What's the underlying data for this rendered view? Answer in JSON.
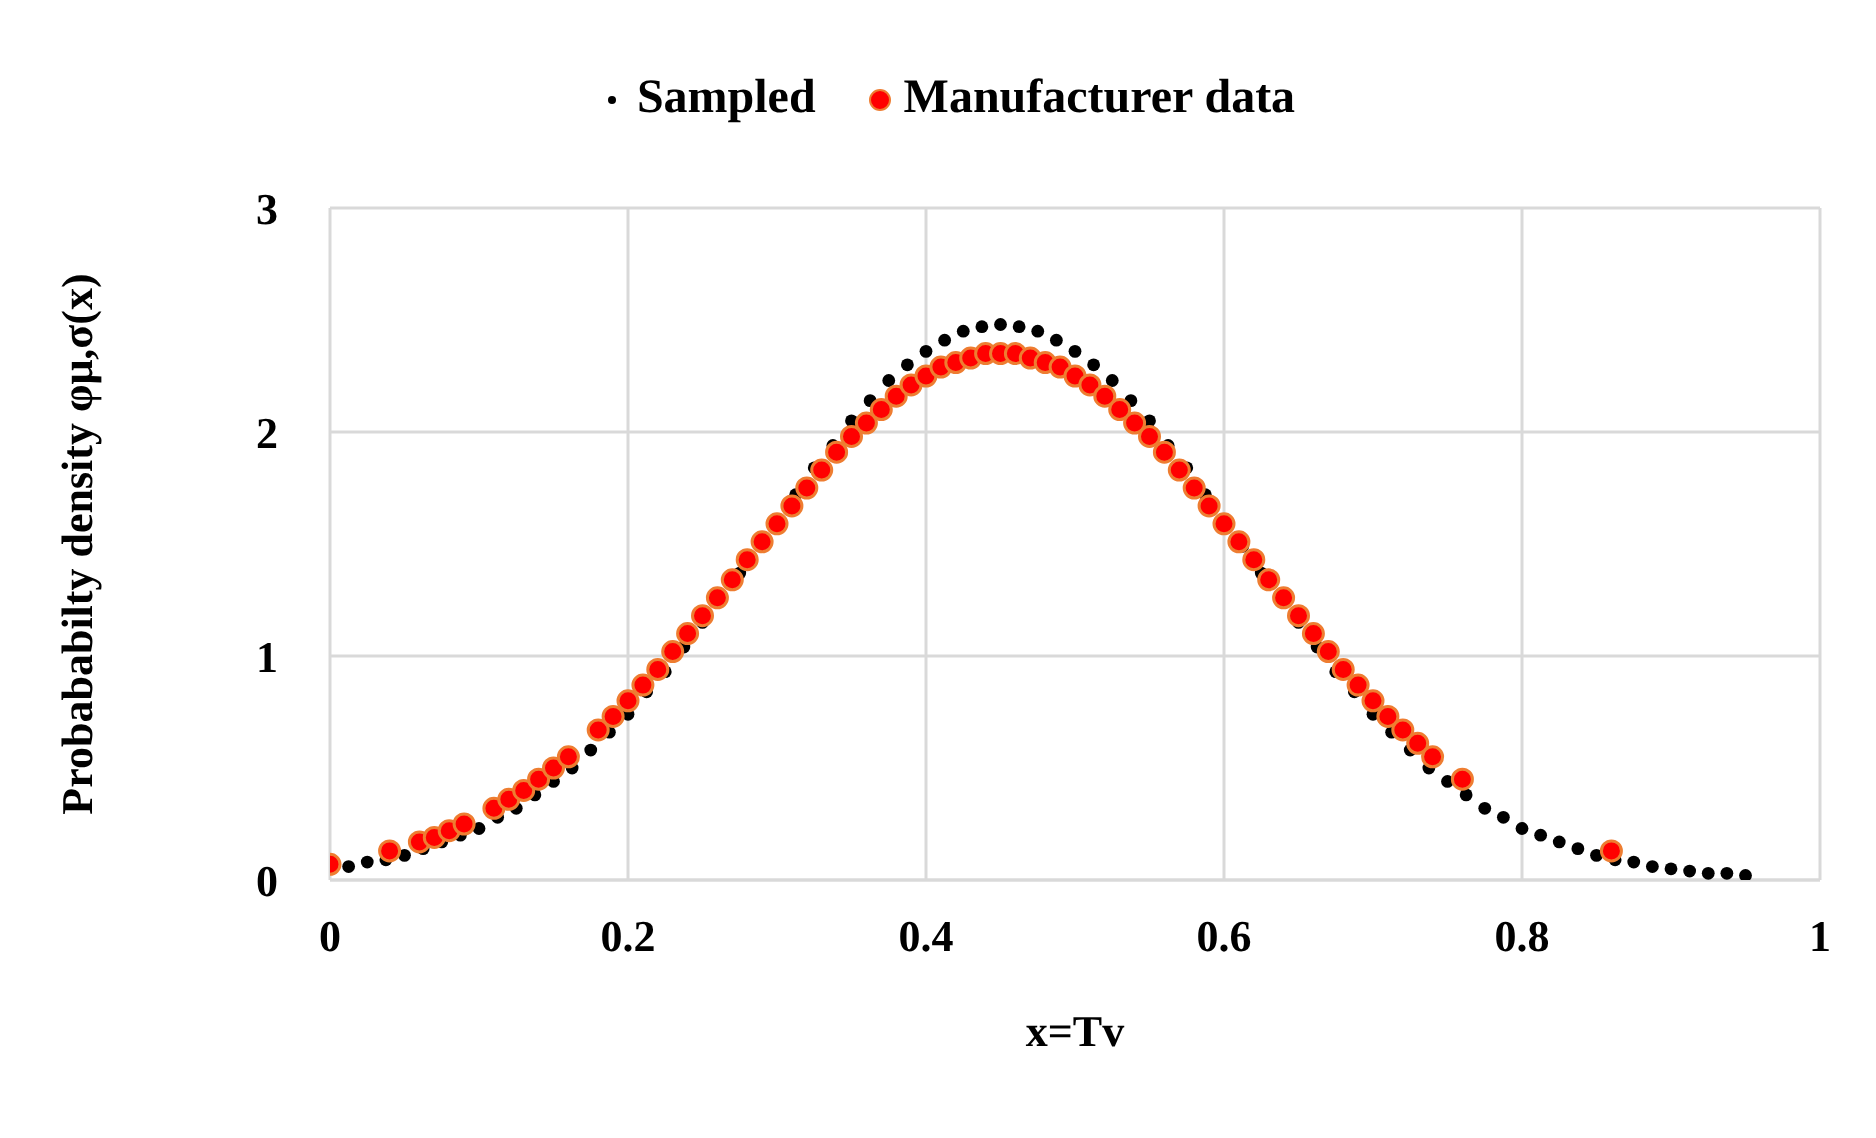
{
  "chart_data": {
    "type": "scatter",
    "xlabel": "x=Tv",
    "ylabel": "Probababilty density φμ,σ(x)",
    "xlim": [
      0,
      1
    ],
    "xticks": [
      0,
      0.2,
      0.4,
      0.6,
      0.8,
      1
    ],
    "ylim": [
      0,
      3
    ],
    "yticks": [
      0,
      1,
      2,
      3
    ],
    "grid": true,
    "legend": "top",
    "marker": "circle",
    "series": [
      {
        "name": "Sampled",
        "color": "#000000",
        "x": [
          0.0125,
          0.025,
          0.0375,
          0.05,
          0.0625,
          0.075,
          0.0875,
          0.1,
          0.1125,
          0.125,
          0.1375,
          0.15,
          0.1625,
          0.175,
          0.1875,
          0.2,
          0.2125,
          0.225,
          0.2375,
          0.25,
          0.2625,
          0.275,
          0.2875,
          0.3,
          0.3125,
          0.325,
          0.3375,
          0.35,
          0.3625,
          0.375,
          0.3875,
          0.4,
          0.4125,
          0.425,
          0.4375,
          0.45,
          0.4625,
          0.475,
          0.4875,
          0.5,
          0.5125,
          0.525,
          0.5375,
          0.55,
          0.5625,
          0.575,
          0.5875,
          0.6,
          0.6125,
          0.625,
          0.6375,
          0.65,
          0.6625,
          0.675,
          0.6875,
          0.7,
          0.7125,
          0.725,
          0.7375,
          0.75,
          0.7625,
          0.775,
          0.7875,
          0.8,
          0.8125,
          0.825,
          0.8375,
          0.85,
          0.8625,
          0.875,
          0.8875,
          0.9,
          0.9125,
          0.925,
          0.9375,
          0.95
        ],
        "values": [
          0.06,
          0.08,
          0.09,
          0.11,
          0.14,
          0.17,
          0.2,
          0.23,
          0.28,
          0.32,
          0.38,
          0.44,
          0.5,
          0.58,
          0.66,
          0.74,
          0.84,
          0.93,
          1.04,
          1.15,
          null,
          1.37,
          null,
          null,
          1.72,
          1.84,
          1.94,
          2.05,
          2.14,
          2.23,
          2.3,
          2.36,
          2.41,
          2.45,
          2.47,
          2.48,
          2.47,
          2.45,
          2.41,
          2.36,
          2.3,
          2.23,
          2.14,
          2.05,
          1.94,
          1.84,
          1.72,
          null,
          1.49,
          1.37,
          null,
          1.15,
          1.04,
          0.93,
          0.84,
          0.74,
          0.66,
          0.58,
          0.5,
          0.44,
          0.38,
          0.32,
          0.28,
          0.23,
          0.2,
          0.17,
          0.14,
          0.11,
          0.09,
          0.08,
          0.06,
          0.05,
          0.04,
          0.03,
          0.03,
          0.02
        ]
      },
      {
        "name": "Manufacturer data",
        "color": "#ff0000",
        "x": [
          0,
          0.04,
          0.06,
          0.07,
          0.08,
          0.09,
          0.11,
          0.12,
          0.13,
          0.14,
          0.15,
          0.16,
          0.18,
          0.19,
          0.2,
          0.21,
          0.22,
          0.23,
          0.24,
          0.25,
          0.26,
          0.27,
          0.28,
          0.29,
          0.3,
          0.31,
          0.32,
          0.33,
          0.34,
          0.35,
          0.36,
          0.37,
          0.38,
          0.39,
          0.4,
          0.41,
          0.42,
          0.43,
          0.44,
          0.45,
          0.46,
          0.47,
          0.48,
          0.49,
          0.5,
          0.51,
          0.52,
          0.53,
          0.54,
          0.55,
          0.56,
          0.57,
          0.58,
          0.59,
          0.6,
          0.61,
          0.62,
          0.63,
          0.64,
          0.65,
          0.66,
          0.67,
          0.68,
          0.69,
          0.7,
          0.71,
          0.72,
          0.73,
          0.74,
          0.76,
          0.86
        ],
        "values": [
          0.07,
          0.13,
          0.17,
          0.19,
          0.22,
          0.25,
          0.32,
          0.36,
          0.4,
          0.45,
          0.5,
          0.55,
          0.67,
          0.73,
          0.8,
          0.87,
          0.94,
          1.02,
          1.1,
          1.18,
          1.26,
          1.34,
          1.43,
          1.51,
          1.59,
          1.67,
          1.75,
          1.83,
          1.91,
          1.98,
          2.04,
          2.1,
          2.16,
          2.21,
          2.25,
          2.29,
          2.31,
          2.33,
          2.35,
          2.35,
          2.35,
          2.33,
          2.31,
          2.29,
          2.25,
          2.21,
          2.16,
          2.1,
          2.04,
          1.98,
          1.91,
          1.83,
          1.75,
          1.67,
          1.59,
          1.51,
          1.43,
          1.34,
          1.26,
          1.18,
          1.1,
          1.02,
          0.94,
          0.87,
          0.8,
          0.73,
          0.67,
          0.61,
          0.55,
          0.45,
          0.13
        ]
      }
    ]
  }
}
